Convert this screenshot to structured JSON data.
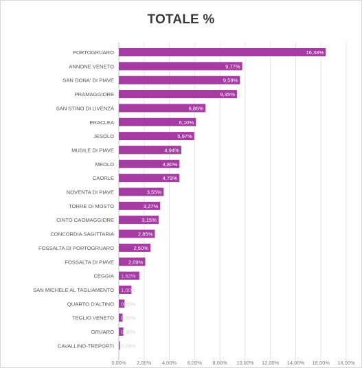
{
  "chart_data": {
    "type": "bar",
    "orientation": "horizontal",
    "title": "TOTALE %",
    "xlabel": "",
    "ylabel": "",
    "xlim": [
      0,
      18
    ],
    "x_ticks": [
      "0,00%",
      "2,00%",
      "4,00%",
      "6,00%",
      "8,00%",
      "10,00%",
      "12,00%",
      "14,00%",
      "16,00%",
      "18,00%"
    ],
    "grid": "vertical",
    "legend": "none",
    "bar_color": "#a63ca3",
    "label_color": "#ffffff",
    "categories": [
      "PORTOGRUARO",
      "ANNONE VENETO",
      "SAN DONA' DI PIAVE",
      "PRAMAGGIORE",
      "SAN STINO DI LIVENZA",
      "ERACLEA",
      "JESOLO",
      "MUSILE DI PIAVE",
      "MEOLO",
      "CAORLE",
      "NOVENTA DI PIAVE",
      "TORRE DI MOSTO",
      "CINTO CAOMAGGIORE",
      "CONCORDIA SAGITTARIA",
      "FOSSALTA DI PORTOGRUARO",
      "FOSSALTA DI PIAVE",
      "CEGGIA",
      "SAN MICHELE AL TAGLIAMENTO",
      "QUARTO D'ALTINO",
      "TEGLIO VENETO",
      "GRUARO",
      "CAVALLINO-TREPORTI"
    ],
    "values": [
      16.38,
      9.77,
      9.59,
      9.35,
      6.86,
      6.1,
      5.97,
      4.94,
      4.8,
      4.79,
      3.55,
      3.27,
      3.15,
      2.85,
      2.5,
      2.09,
      1.62,
      1.0,
      0.45,
      0.3,
      0.36,
      0.08
    ],
    "data_labels": [
      "16,38%",
      "9,77%",
      "9,59%",
      "9,35%",
      "6,86%",
      "6,10%",
      "5,97%",
      "4,94%",
      "4,80%",
      "4,79%",
      "3,55%",
      "3,27%",
      "3,15%",
      "2,85%",
      "2,50%",
      "2,09%",
      "1,62%",
      "1,00%",
      "0,45%",
      "0,30%",
      "0,36%",
      "0,08%"
    ]
  }
}
